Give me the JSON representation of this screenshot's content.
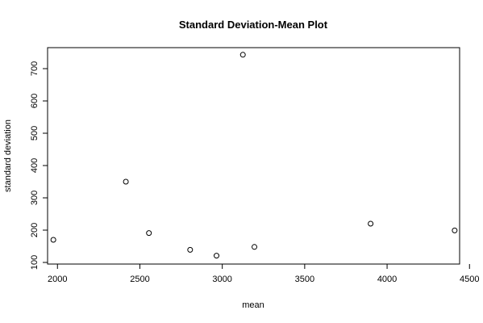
{
  "chart_data": {
    "type": "scatter",
    "title": "Standard Deviation-Mean Plot",
    "xlabel": "mean",
    "ylabel": "standard deviation",
    "xlim": [
      1940,
      4440
    ],
    "ylim": [
      95,
      765
    ],
    "x_ticks": [
      2000,
      2500,
      3000,
      3500,
      4000,
      4500
    ],
    "y_ticks": [
      100,
      200,
      300,
      400,
      500,
      600,
      700
    ],
    "x_tick_labels": [
      "2000",
      "2500",
      "3000",
      "3500",
      "4000",
      "4500"
    ],
    "y_tick_labels": [
      "100",
      "200",
      "300",
      "400",
      "500",
      "600",
      "700"
    ],
    "grid": false,
    "points": [
      {
        "x": 1975,
        "y": 170
      },
      {
        "x": 2415,
        "y": 350
      },
      {
        "x": 2555,
        "y": 191
      },
      {
        "x": 2805,
        "y": 139
      },
      {
        "x": 2965,
        "y": 121
      },
      {
        "x": 3125,
        "y": 743
      },
      {
        "x": 3195,
        "y": 148
      },
      {
        "x": 3900,
        "y": 220
      },
      {
        "x": 4410,
        "y": 199
      }
    ]
  }
}
